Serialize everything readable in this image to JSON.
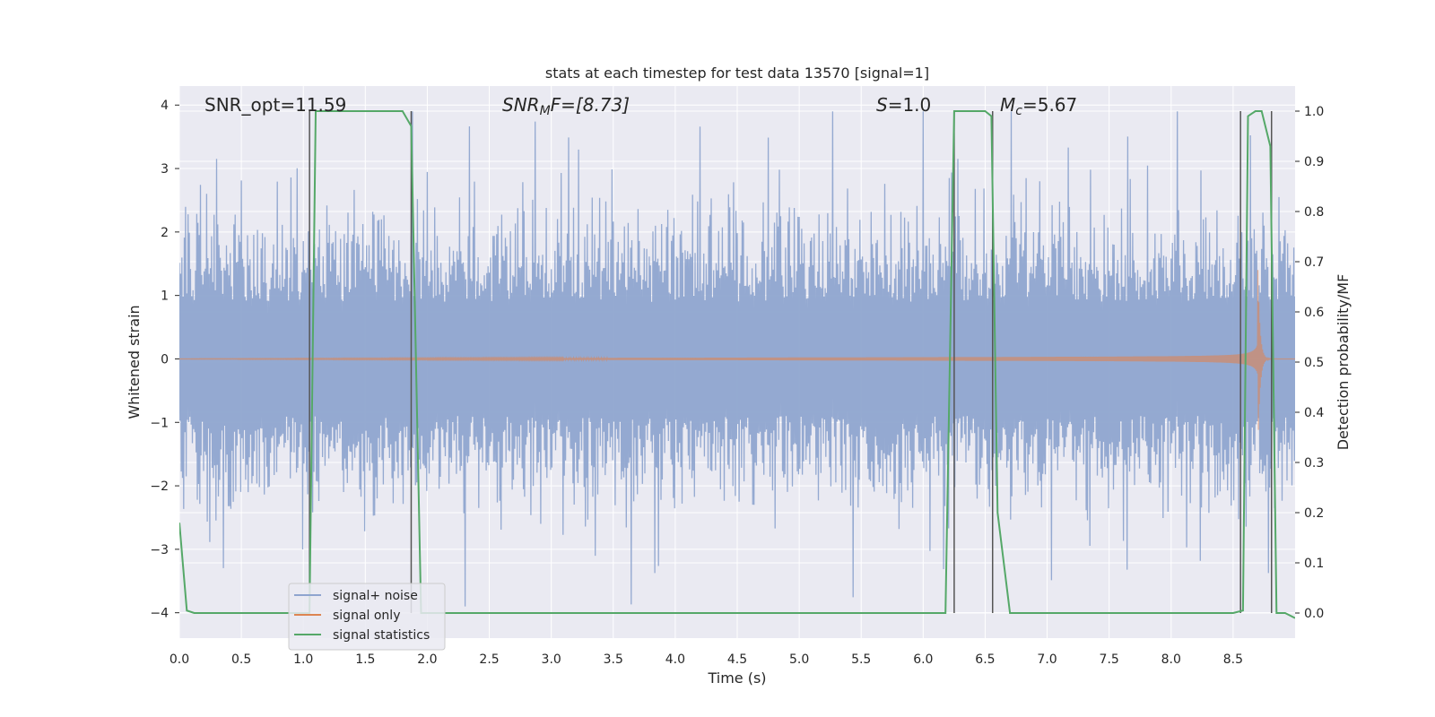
{
  "chart_data": {
    "type": "line",
    "title": "stats at each timestep for test data 13570 [signal=1]",
    "xlabel": "Time (s)",
    "ylabel": "Whitened strain",
    "y2label": "Detection probability/MF",
    "xlim": [
      0,
      9.0
    ],
    "ylim": [
      -4.4,
      4.3
    ],
    "y2lim": [
      -0.05,
      1.05
    ],
    "x_ticks": [
      "0.0",
      "0.5",
      "1.0",
      "1.5",
      "2.0",
      "2.5",
      "3.0",
      "3.5",
      "4.0",
      "4.5",
      "5.0",
      "5.5",
      "6.0",
      "6.5",
      "7.0",
      "7.5",
      "8.0",
      "8.5"
    ],
    "y_ticks": [
      "4",
      "3",
      "2",
      "1",
      "0",
      "−1",
      "−2",
      "−3",
      "−4"
    ],
    "y2_ticks": [
      "1.0",
      "0.9",
      "0.8",
      "0.7",
      "0.6",
      "0.5",
      "0.4",
      "0.3",
      "0.2",
      "0.1",
      "0.0"
    ],
    "grid": true,
    "legend_placement": "lower-left",
    "annotations": {
      "snr_opt": "SNR_opt=11.59",
      "snr_mf_main": "SNR",
      "snr_mf_sub": "M",
      "snr_mf_rest": "F=[8.73]",
      "s_main": "S",
      "s_rest": "=1.0",
      "mc_main": "M",
      "mc_sub": "c",
      "mc_rest": "=5.67"
    },
    "series": [
      {
        "name": "signal+ noise",
        "color": "#8fa5cf",
        "kind": "noise",
        "amplitude_typical": 1.5,
        "amplitude_peak": 3.9
      },
      {
        "name": "signal only",
        "color": "#dd8452",
        "kind": "chirp",
        "merger_time": 8.7,
        "peak_amplitude": 1.4
      },
      {
        "name": "signal statistics",
        "color": "#55a868",
        "kind": "step",
        "x": [
          0.0,
          0.06,
          0.12,
          1.05,
          1.1,
          1.8,
          1.87,
          1.95,
          2.0,
          6.18,
          6.25,
          6.33,
          6.5,
          6.55,
          6.6,
          6.7,
          8.5,
          8.58,
          8.62,
          8.68,
          8.73,
          8.8,
          8.85,
          8.92,
          9.0
        ],
        "y": [
          0.18,
          0.005,
          0.0,
          0.0,
          1.0,
          1.0,
          0.97,
          0.0,
          0.0,
          0.0,
          1.0,
          1.0,
          1.0,
          0.99,
          0.2,
          0.0,
          0.0,
          0.005,
          0.99,
          1.0,
          1.0,
          0.93,
          0.0,
          0.0,
          -0.01
        ]
      }
    ],
    "vertical_lines_x": [
      1.05,
      1.87,
      6.25,
      6.56,
      8.56,
      8.81
    ]
  }
}
